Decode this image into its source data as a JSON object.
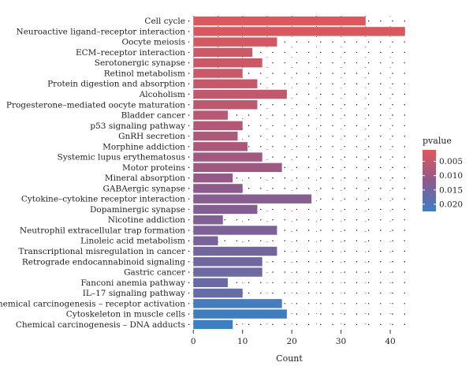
{
  "chart_data": {
    "type": "bar",
    "orientation": "horizontal",
    "xlabel": "Count",
    "xlim": [
      -1,
      44
    ],
    "xticks": [
      0,
      10,
      20,
      30,
      40
    ],
    "grid": "dotted",
    "legend": {
      "title": "pvalue",
      "placement": "right",
      "ticks": [
        "0.005",
        "0.010",
        "0.015",
        "0.020"
      ],
      "tick_values": [
        0.005,
        0.01,
        0.015,
        0.02
      ],
      "range": [
        0.001,
        0.0225
      ],
      "color_low": "#e15759",
      "color_mid": "#8e5a8c",
      "color_high": "#3b7fc4"
    },
    "categories": [
      "Cell cycle",
      "Neuroactive ligand–receptor interaction",
      "Oocyte meiosis",
      "ECM–receptor interaction",
      "Serotonergic synapse",
      "Retinol metabolism",
      "Protein digestion and absorption",
      "Alcoholism",
      "Progesterone–mediated oocyte maturation",
      "Bladder cancer",
      "p53 signaling pathway",
      "GnRH secretion",
      "Morphine addiction",
      "Systemic lupus erythematosus",
      "Motor proteins",
      "Mineral absorption",
      "GABAergic synapse",
      "Cytokine–cytokine receptor interaction",
      "Dopaminergic synapse",
      "Nicotine addiction",
      "Neutrophil extracellular trap formation",
      "Linoleic acid metabolism",
      "Transcriptional misregulation in cancer",
      "Retrograde endocannabinoid signaling",
      "Gastric cancer",
      "Fanconi anemia pathway",
      "IL–17 signaling pathway",
      "Chemical carcinogenesis – receptor activation",
      "Cytoskeleton in muscle cells",
      "Chemical carcinogenesis – DNA adducts"
    ],
    "values": [
      35,
      43,
      17,
      12,
      14,
      10,
      13,
      19,
      13,
      7,
      10,
      9,
      11,
      14,
      18,
      8,
      10,
      24,
      13,
      6,
      17,
      5,
      17,
      14,
      14,
      7,
      10,
      18,
      19,
      8
    ],
    "pvalues": [
      0.0015,
      0.002,
      0.003,
      0.0035,
      0.004,
      0.004,
      0.0045,
      0.005,
      0.0055,
      0.0065,
      0.007,
      0.0075,
      0.008,
      0.009,
      0.0095,
      0.011,
      0.012,
      0.0125,
      0.013,
      0.0135,
      0.014,
      0.0145,
      0.015,
      0.0155,
      0.016,
      0.0165,
      0.017,
      0.0215,
      0.022,
      0.0225
    ]
  }
}
